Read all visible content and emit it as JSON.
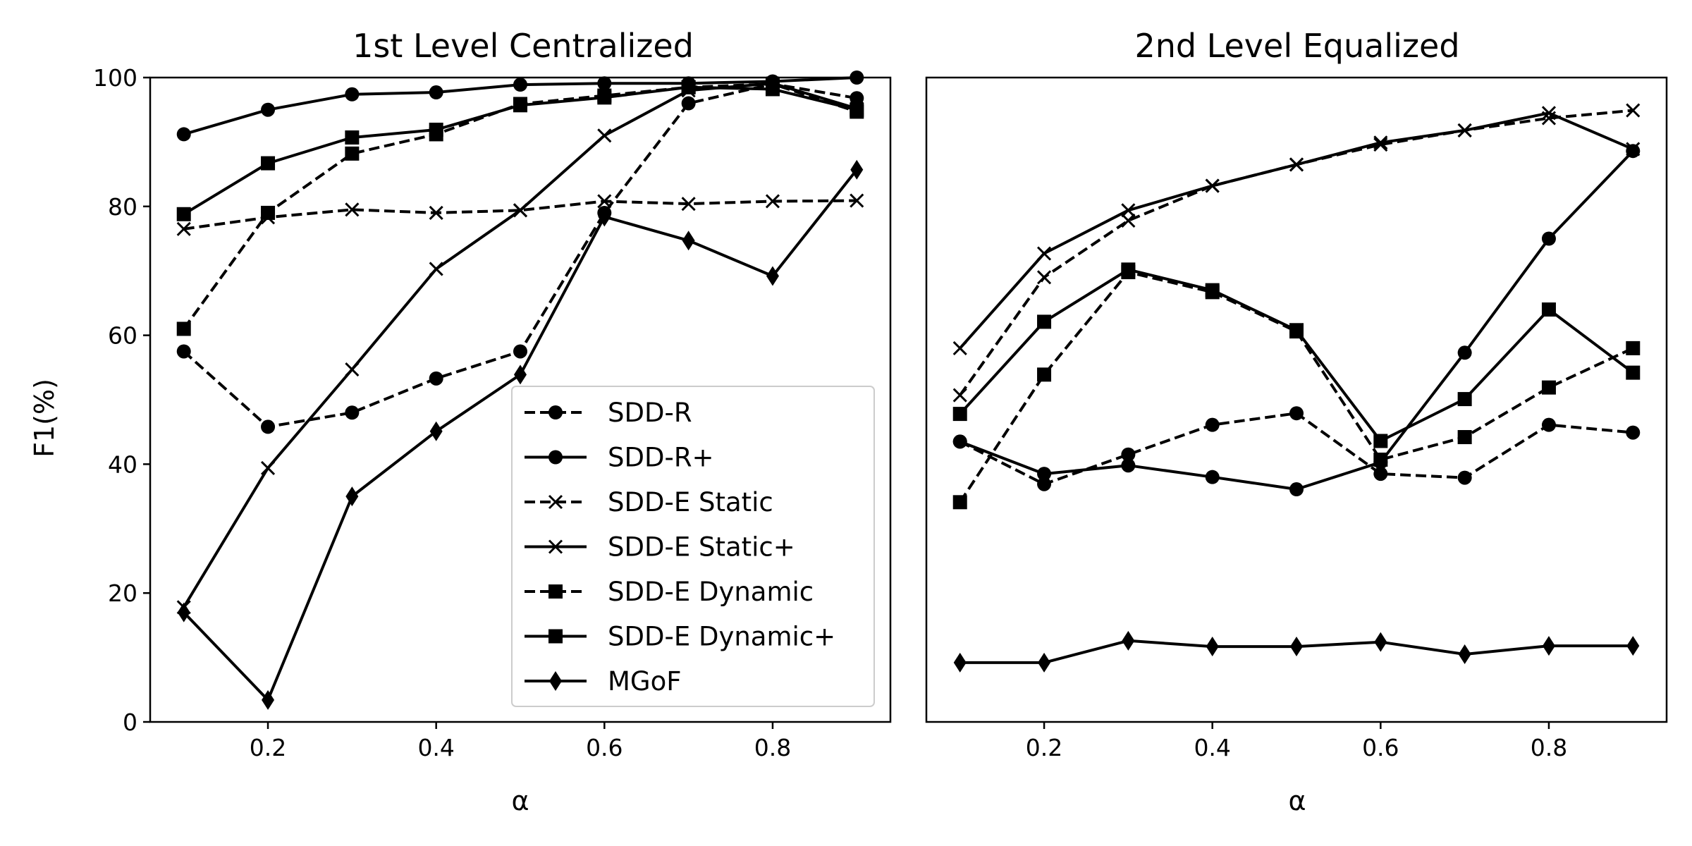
{
  "figure": {
    "shared_ylabel": "F1(%)"
  },
  "chart_data": [
    {
      "type": "line",
      "title": "1st Level Centralized",
      "xlabel": "α",
      "ylabel": "F1(%)",
      "xlim": [
        0.06,
        0.94
      ],
      "ylim": [
        0,
        100
      ],
      "xticks": [
        0.2,
        0.4,
        0.6,
        0.8
      ],
      "xtick_labels": [
        "0.2",
        "0.4",
        "0.6",
        "0.8"
      ],
      "yticks": [
        0,
        20,
        40,
        60,
        80,
        100
      ],
      "ytick_labels": [
        "0",
        "20",
        "40",
        "60",
        "80",
        "100"
      ],
      "grid": false,
      "legend": "lower-right",
      "x": [
        0.1,
        0.2,
        0.3,
        0.4,
        0.5,
        0.6,
        0.7,
        0.8,
        0.9
      ],
      "series": [
        {
          "name": "SDD-R",
          "style": "dashed",
          "marker": "circle",
          "values": [
            57.5,
            45.8,
            48.0,
            53.3,
            57.5,
            79.0,
            96.0,
            99.0,
            96.8
          ]
        },
        {
          "name": "SDD-R+",
          "style": "solid",
          "marker": "circle",
          "values": [
            91.2,
            95.0,
            97.4,
            97.7,
            98.9,
            99.1,
            99.1,
            99.4,
            100.0
          ]
        },
        {
          "name": "SDD-E Static",
          "style": "dashed",
          "marker": "x",
          "values": [
            76.5,
            78.3,
            79.5,
            79.0,
            79.4,
            80.8,
            80.4,
            80.8,
            80.9
          ]
        },
        {
          "name": "SDD-E Static+",
          "style": "solid",
          "marker": "x",
          "values": [
            17.8,
            39.4,
            54.7,
            70.3,
            79.4,
            91.0,
            98.0,
            99.1,
            95.2
          ]
        },
        {
          "name": "SDD-E Dynamic",
          "style": "dashed",
          "marker": "square",
          "values": [
            61.0,
            79.0,
            88.2,
            91.2,
            95.9,
            97.2,
            98.5,
            99.0,
            94.7
          ]
        },
        {
          "name": "SDD-E Dynamic+",
          "style": "solid",
          "marker": "square",
          "values": [
            78.8,
            86.7,
            90.7,
            91.9,
            95.7,
            96.9,
            98.5,
            98.2,
            95.0
          ]
        },
        {
          "name": "MGoF",
          "style": "solid",
          "marker": "diamond",
          "values": [
            17.0,
            3.4,
            35.0,
            45.1,
            53.9,
            78.4,
            74.7,
            69.2,
            85.7
          ]
        }
      ]
    },
    {
      "type": "line",
      "title": "2nd Level Equalized",
      "xlabel": "α",
      "ylabel": "",
      "xlim": [
        0.06,
        0.94
      ],
      "ylim": [
        0,
        100
      ],
      "xticks": [
        0.2,
        0.4,
        0.6,
        0.8
      ],
      "xtick_labels": [
        "0.2",
        "0.4",
        "0.6",
        "0.8"
      ],
      "yticks": [],
      "ytick_labels": [],
      "grid": false,
      "x": [
        0.1,
        0.2,
        0.3,
        0.4,
        0.5,
        0.6,
        0.7,
        0.8,
        0.9
      ],
      "series": [
        {
          "name": "SDD-R",
          "style": "dashed",
          "marker": "circle",
          "values": [
            43.5,
            36.9,
            41.5,
            46.1,
            47.9,
            38.5,
            37.9,
            46.1,
            44.9
          ]
        },
        {
          "name": "SDD-R+",
          "style": "solid",
          "marker": "circle",
          "values": [
            43.5,
            38.5,
            39.8,
            38.0,
            36.1,
            40.3,
            57.3,
            75.0,
            88.6
          ]
        },
        {
          "name": "SDD-E Static",
          "style": "dashed",
          "marker": "x",
          "values": [
            50.7,
            69.0,
            77.8,
            83.2,
            86.5,
            89.6,
            91.8,
            93.7,
            94.9
          ]
        },
        {
          "name": "SDD-E Static+",
          "style": "solid",
          "marker": "x",
          "values": [
            58.0,
            72.7,
            79.4,
            83.2,
            86.5,
            89.9,
            91.8,
            94.5,
            88.9
          ]
        },
        {
          "name": "SDD-E Dynamic",
          "style": "dashed",
          "marker": "square",
          "values": [
            34.1,
            53.9,
            69.8,
            66.7,
            60.6,
            40.7,
            44.2,
            51.9,
            58.0
          ]
        },
        {
          "name": "SDD-E Dynamic+",
          "style": "solid",
          "marker": "square",
          "values": [
            47.8,
            62.1,
            70.2,
            67.0,
            60.8,
            43.6,
            50.1,
            64.0,
            54.2
          ]
        },
        {
          "name": "MGoF",
          "style": "solid",
          "marker": "diamond",
          "values": [
            9.2,
            9.2,
            12.6,
            11.7,
            11.7,
            12.4,
            10.5,
            11.8,
            11.8
          ]
        }
      ]
    }
  ]
}
